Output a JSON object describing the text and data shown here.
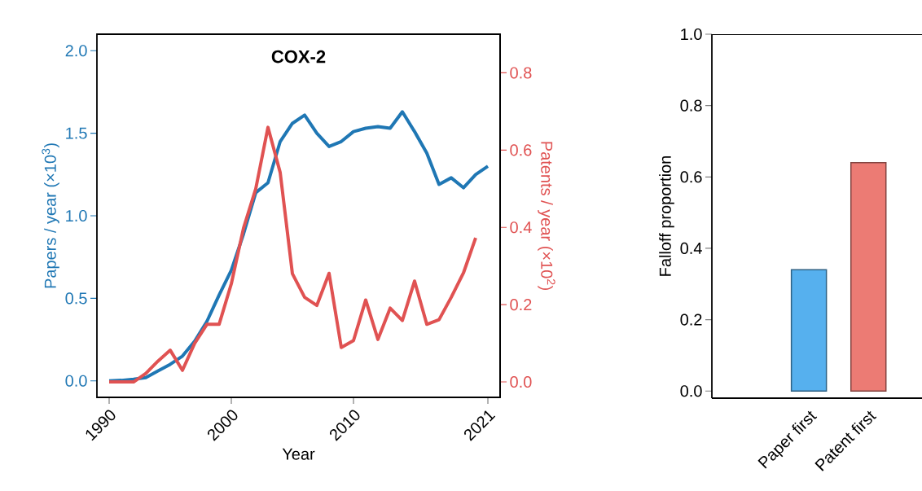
{
  "chart_data": [
    {
      "type": "line",
      "title": "COX-2",
      "xlabel": "Year",
      "ylabel": "Papers / year (×10$^{3}$)",
      "y2label": "Patents / year (×10$^{2}$)",
      "x": [
        1990,
        1991,
        1992,
        1993,
        1994,
        1995,
        1996,
        1997,
        1998,
        1999,
        2000,
        2001,
        2002,
        2003,
        2004,
        2005,
        2006,
        2007,
        2008,
        2009,
        2010,
        2011,
        2012,
        2013,
        2014,
        2015,
        2016,
        2017,
        2018,
        2019,
        2020,
        2021
      ],
      "series": [
        {
          "color": "#1f77b4",
          "values": [
            0,
            0.003,
            0.01,
            0.02,
            0.06,
            0.1,
            0.15,
            0.24,
            0.36,
            0.52,
            0.67,
            0.89,
            1.14,
            1.2,
            1.45,
            1.56,
            1.61,
            1.5,
            1.42,
            1.45,
            1.51,
            1.53,
            1.54,
            1.53,
            1.63,
            1.51,
            1.38,
            1.19,
            1.23,
            1.17,
            1.25,
            1.3
          ]
        },
        {
          "color": "#e05252",
          "axis": "y2",
          "values": [
            0,
            0,
            0,
            0.022,
            0.054,
            0.082,
            0.03,
            0.1,
            0.149,
            0.149,
            0.254,
            0.398,
            0.5,
            0.659,
            0.542,
            0.28,
            0.219,
            0.198,
            0.281,
            0.089,
            0.107,
            0.212,
            0.11,
            0.191,
            0.159,
            0.261,
            0.149,
            0.161,
            0.219,
            0.282,
            0.373,
            null
          ]
        }
      ],
      "xlim": [
        1989,
        2022
      ],
      "xticks": [
        1990,
        2000,
        2010,
        2021
      ],
      "ylim": [
        -0.1,
        2.1
      ],
      "yticks": [
        {
          "value": 0,
          "label": "0.0"
        },
        {
          "value": 0.5,
          "label": "0.5"
        },
        {
          "value": 1,
          "label": "1.0"
        },
        {
          "value": 1.5,
          "label": "1.5"
        },
        {
          "value": 2,
          "label": "2.0"
        }
      ],
      "y2lim": [
        -0.04,
        0.9
      ],
      "y2ticks": [
        {
          "value": 0,
          "label": "0.0"
        },
        {
          "value": 0.2,
          "label": "0.2"
        },
        {
          "value": 0.4,
          "label": "0.4"
        },
        {
          "value": 0.6,
          "label": "0.6"
        },
        {
          "value": 0.8,
          "label": "0.8"
        }
      ]
    },
    {
      "type": "bar",
      "ylabel": "Falloff proportion",
      "categories": [
        "Paper first",
        "Patent first"
      ],
      "values": [
        0.34,
        0.64
      ],
      "colors": [
        "#56b0ee",
        "#ec7b74"
      ],
      "ylim": [
        -0.02,
        1.0
      ],
      "yticks": [
        {
          "value": 0,
          "label": "0.0"
        },
        {
          "value": 0.2,
          "label": "0.2"
        },
        {
          "value": 0.4,
          "label": "0.4"
        },
        {
          "value": 0.6,
          "label": "0.6"
        },
        {
          "value": 0.8,
          "label": "0.8"
        },
        {
          "value": 1,
          "label": "1.0"
        }
      ]
    }
  ]
}
